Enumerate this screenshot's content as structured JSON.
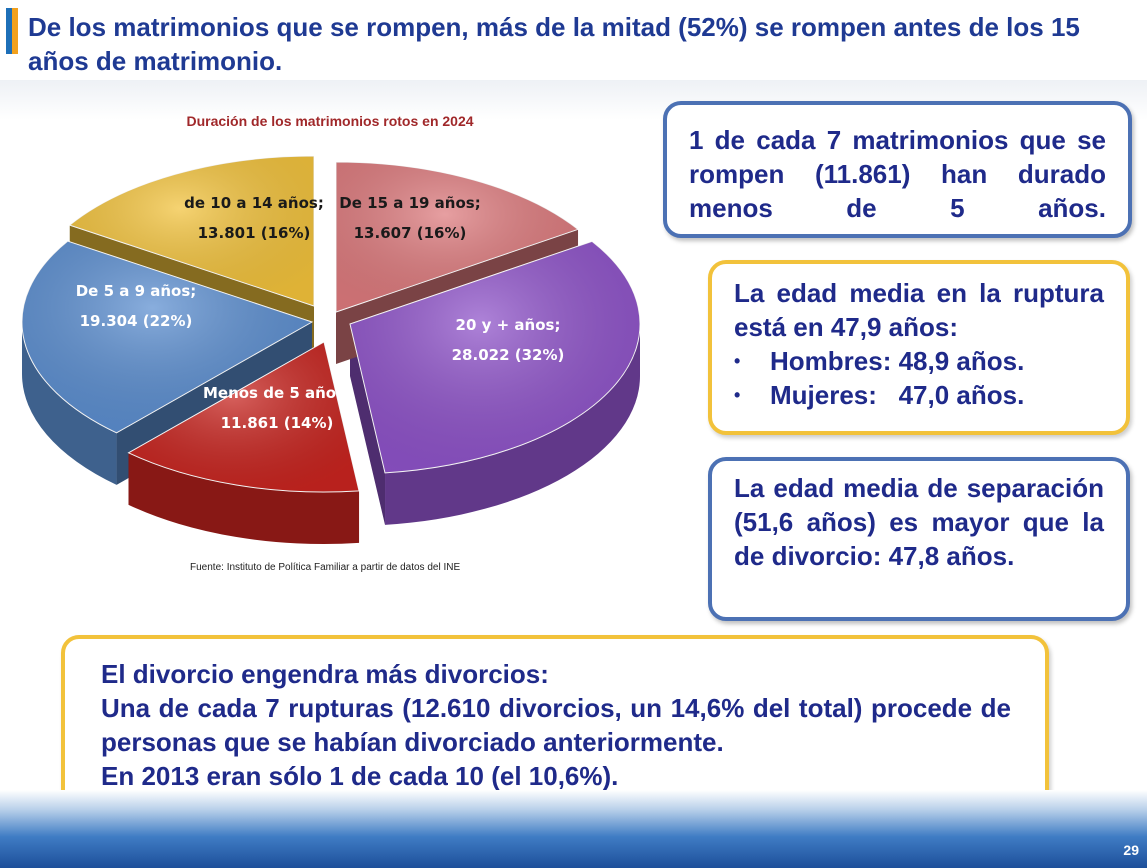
{
  "page": {
    "title": "De los matrimonios que se rompen, más de la mitad (52%) se rompen antes de los 15 años de matrimonio.",
    "source": "Fuente: Instituto de Política Familiar a partir de datos del INE",
    "page_number": "29"
  },
  "chart_data": {
    "type": "pie",
    "title": "Duración de los matrimonios rotos en 2024",
    "slices": [
      {
        "label": "De 15 a 19 años;",
        "value_text": "13.607 (16%)",
        "value": 13607,
        "percent": 16,
        "color": "#dd7a7d"
      },
      {
        "label": "20 y + años;",
        "value_text": "28.022 (32%)",
        "value": 28022,
        "percent": 32,
        "color": "#8e52c9"
      },
      {
        "label": "Menos de 5 años;",
        "value_text": "11.861 (14%)",
        "value": 11861,
        "percent": 14,
        "color": "#c8241f"
      },
      {
        "label": "De 5 a 9 años;",
        "value_text": "19.304 (22%)",
        "value": 19304,
        "percent": 22,
        "color": "#5b8ed0"
      },
      {
        "label": "de 10 a 14 años;",
        "value_text": "13.801 (16%)",
        "value": 13801,
        "percent": 16,
        "color": "#f2c23b"
      }
    ]
  },
  "boxes": {
    "box1": {
      "text": "1 de cada 7 matrimonios que se rompen (11.861) han durado menos de 5 años."
    },
    "box2": {
      "text": "La edad media en la ruptura está en 47,9 años:",
      "bullets": [
        {
          "symbol": "•",
          "text": "Hombres: 48,9 años."
        },
        {
          "symbol": "•",
          "text": "Mujeres:   47,0 años."
        }
      ]
    },
    "box3": {
      "text": "La edad media de separación (51,6 años) es mayor que la de divorcio: 47,8 años."
    },
    "box4": {
      "lines": [
        "El divorcio engendra más divorcios:",
        "Una de cada 7 rupturas (12.610 divorcios, un 14,6% del total) procede de personas que se habían divorciado anteriormente.",
        "En 2013 eran sólo 1 de cada 10 (el 10,6%)."
      ]
    }
  }
}
